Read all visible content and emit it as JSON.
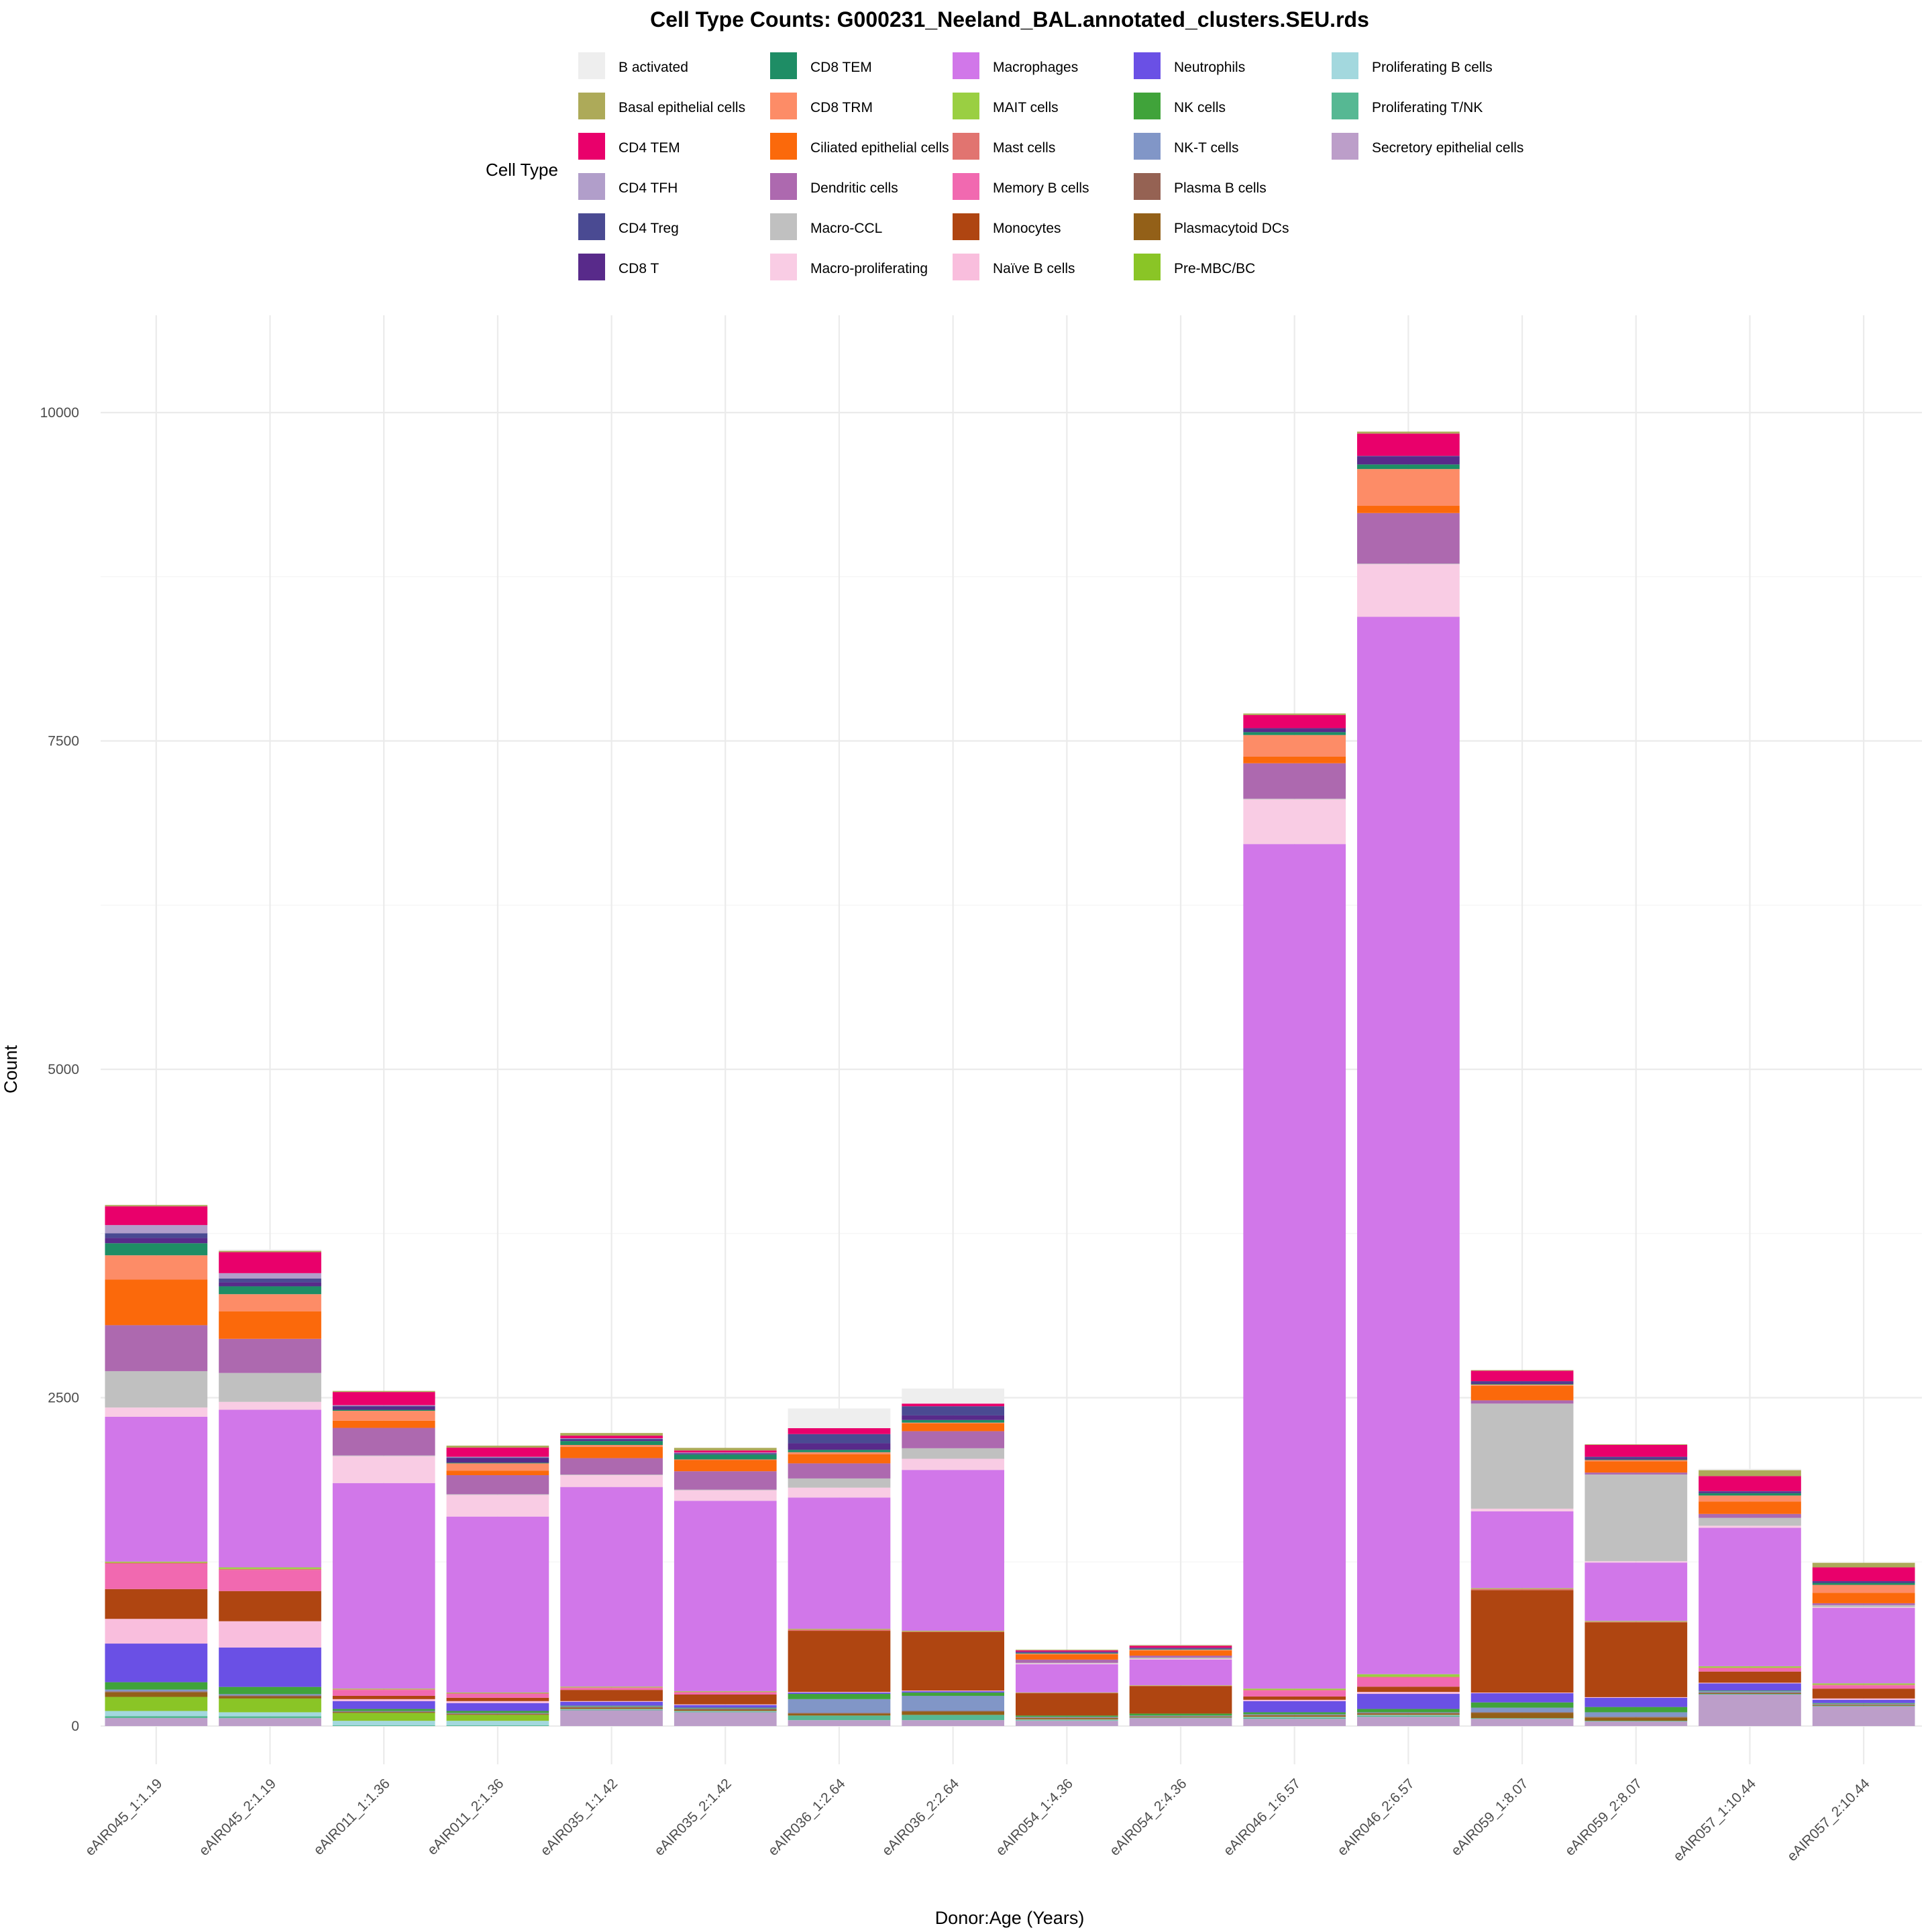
{
  "chart_data": {
    "type": "bar",
    "stacked": true,
    "title": "Cell Type Counts: G000231_Neeland_BAL.annotated_clusters.SEU.rds",
    "xlabel": "Donor:Age (Years)",
    "ylabel": "Count",
    "ylim": [
      0,
      10500
    ],
    "yticks": [
      "0",
      "2500",
      "5000",
      "7500",
      "10000"
    ],
    "ytick_values": [
      0,
      2500,
      5000,
      7500,
      10000
    ],
    "grid": true,
    "legend_title": "Cell Type",
    "legend_position": "top",
    "categories": [
      "eAIR045_1:1.19",
      "eAIR045_2:1.19",
      "eAIR011_1:1.36",
      "eAIR011_2:1.36",
      "eAIR035_1:1.42",
      "eAIR035_2:1.42",
      "eAIR036_1:2.64",
      "eAIR036_2:2.64",
      "eAIR054_1:4.36",
      "eAIR054_2:4.36",
      "eAIR046_1:6.57",
      "eAIR046_2:6.57",
      "eAIR059_1:8.07",
      "eAIR059_2:8.07",
      "eAIR057_1:10.44",
      "eAIR057_2:10.44"
    ],
    "series": [
      {
        "name": "B activated",
        "color": "#EEEEEE",
        "values": [
          0,
          10,
          0,
          0,
          0,
          0,
          150,
          115,
          0,
          5,
          0,
          0,
          0,
          0,
          10,
          0
        ]
      },
      {
        "name": "Basal epithelial cells",
        "color": "#ADAA59",
        "values": [
          10,
          10,
          8,
          15,
          20,
          20,
          0,
          0,
          5,
          5,
          12,
          15,
          5,
          5,
          45,
          35
        ]
      },
      {
        "name": "CD4 TEM",
        "color": "#E9006B",
        "values": [
          143,
          160,
          100,
          70,
          20,
          15,
          45,
          20,
          10,
          15,
          100,
          170,
          80,
          90,
          115,
          105
        ]
      },
      {
        "name": "CD4 TFH",
        "color": "#B19ECA",
        "values": [
          62,
          40,
          5,
          5,
          5,
          5,
          0,
          0,
          0,
          0,
          0,
          0,
          0,
          0,
          0,
          0
        ]
      },
      {
        "name": "CD4 Treg",
        "color": "#4A4A92",
        "values": [
          36,
          30,
          5,
          5,
          8,
          5,
          70,
          70,
          5,
          5,
          5,
          5,
          10,
          10,
          5,
          5
        ]
      },
      {
        "name": "CD8 T",
        "color": "#582A8A",
        "values": [
          40,
          30,
          25,
          35,
          8,
          5,
          50,
          35,
          5,
          5,
          25,
          60,
          10,
          10,
          10,
          8
        ]
      },
      {
        "name": "CD8 TEM",
        "color": "#1E8D65",
        "values": [
          92,
          60,
          8,
          5,
          30,
          38,
          18,
          20,
          5,
          5,
          22,
          35,
          5,
          5,
          18,
          15
        ]
      },
      {
        "name": "CD8 TRM",
        "color": "#FD8C67",
        "values": [
          185,
          130,
          75,
          55,
          15,
          5,
          15,
          5,
          5,
          5,
          165,
          280,
          10,
          10,
          45,
          60
        ]
      },
      {
        "name": "Ciliated epithelial cells",
        "color": "#FB690B",
        "values": [
          347,
          210,
          55,
          35,
          85,
          85,
          70,
          60,
          40,
          40,
          50,
          55,
          110,
          85,
          95,
          80
        ]
      },
      {
        "name": "Dendritic cells",
        "color": "#AD69AF",
        "values": [
          350,
          260,
          210,
          145,
          125,
          140,
          115,
          130,
          25,
          15,
          270,
          385,
          25,
          15,
          30,
          15
        ]
      },
      {
        "name": "Macro-CCL",
        "color": "#C0C0C0",
        "values": [
          277,
          220,
          5,
          5,
          5,
          5,
          70,
          80,
          5,
          10,
          5,
          5,
          800,
          660,
          60,
          15
        ]
      },
      {
        "name": "Macro-proliferating",
        "color": "#F9CCE4",
        "values": [
          70,
          60,
          205,
          165,
          90,
          80,
          75,
          85,
          5,
          5,
          340,
          400,
          20,
          10,
          15,
          5
        ]
      },
      {
        "name": "Macrophages",
        "color": "#D177E9",
        "values": [
          1103,
          1200,
          1565,
          1340,
          1520,
          1450,
          1000,
          1225,
          215,
          195,
          6430,
          8050,
          585,
          445,
          1055,
          575
        ]
      },
      {
        "name": "MAIT cells",
        "color": "#9ACF42",
        "values": [
          8,
          12,
          5,
          5,
          5,
          5,
          5,
          5,
          3,
          3,
          10,
          20,
          5,
          5,
          10,
          10
        ]
      },
      {
        "name": "Mast cells",
        "color": "#E17470",
        "values": [
          8,
          8,
          5,
          5,
          5,
          5,
          10,
          5,
          3,
          3,
          5,
          5,
          10,
          5,
          5,
          5
        ]
      },
      {
        "name": "Memory B cells",
        "color": "#F169B0",
        "values": [
          193,
          160,
          45,
          30,
          15,
          15,
          0,
          0,
          0,
          0,
          45,
          70,
          0,
          0,
          25,
          25
        ]
      },
      {
        "name": "Monocytes",
        "color": "#AF4511",
        "values": [
          227,
          230,
          25,
          25,
          85,
          75,
          465,
          445,
          170,
          210,
          25,
          40,
          780,
          570,
          85,
          75
        ]
      },
      {
        "name": "Naïve B cells",
        "color": "#F9BEDD",
        "values": [
          188,
          200,
          15,
          15,
          5,
          5,
          5,
          5,
          0,
          0,
          10,
          15,
          5,
          5,
          5,
          10
        ]
      },
      {
        "name": "Neutrophils",
        "color": "#6A50E5",
        "values": [
          294,
          300,
          60,
          60,
          30,
          20,
          10,
          10,
          0,
          0,
          85,
          115,
          70,
          70,
          55,
          25
        ]
      },
      {
        "name": "NK cells",
        "color": "#40A33A",
        "values": [
          56,
          55,
          15,
          15,
          5,
          5,
          40,
          25,
          10,
          15,
          15,
          25,
          40,
          40,
          5,
          5
        ]
      },
      {
        "name": "NK-T cells",
        "color": "#8196C7",
        "values": [
          14,
          10,
          5,
          5,
          5,
          5,
          105,
          115,
          5,
          5,
          5,
          5,
          35,
          35,
          10,
          5
        ]
      },
      {
        "name": "Plasma B cells",
        "color": "#956253",
        "values": [
          8,
          8,
          5,
          5,
          5,
          5,
          5,
          5,
          5,
          5,
          5,
          5,
          5,
          5,
          5,
          5
        ]
      },
      {
        "name": "Plasmacytoid DCs",
        "color": "#936018",
        "values": [
          34,
          15,
          5,
          5,
          10,
          10,
          15,
          25,
          10,
          5,
          10,
          10,
          40,
          25,
          5,
          5
        ]
      },
      {
        "name": "Pre-MBC/BC",
        "color": "#8AC526",
        "values": [
          107,
          105,
          60,
          45,
          0,
          0,
          0,
          0,
          0,
          0,
          0,
          0,
          0,
          0,
          0,
          0
        ]
      },
      {
        "name": "Proliferating B cells",
        "color": "#A3D8DE",
        "values": [
          39,
          30,
          35,
          35,
          5,
          5,
          0,
          0,
          5,
          0,
          5,
          5,
          0,
          0,
          0,
          0
        ]
      },
      {
        "name": "Proliferating T/NK",
        "color": "#56B893",
        "values": [
          15,
          15,
          5,
          5,
          5,
          5,
          35,
          40,
          5,
          5,
          10,
          10,
          5,
          5,
          5,
          5
        ]
      },
      {
        "name": "Secretory epithelial cells",
        "color": "#BC9EC9",
        "values": [
          61,
          60,
          0,
          0,
          120,
          105,
          45,
          45,
          40,
          60,
          55,
          70,
          55,
          35,
          240,
          150
        ]
      }
    ]
  }
}
